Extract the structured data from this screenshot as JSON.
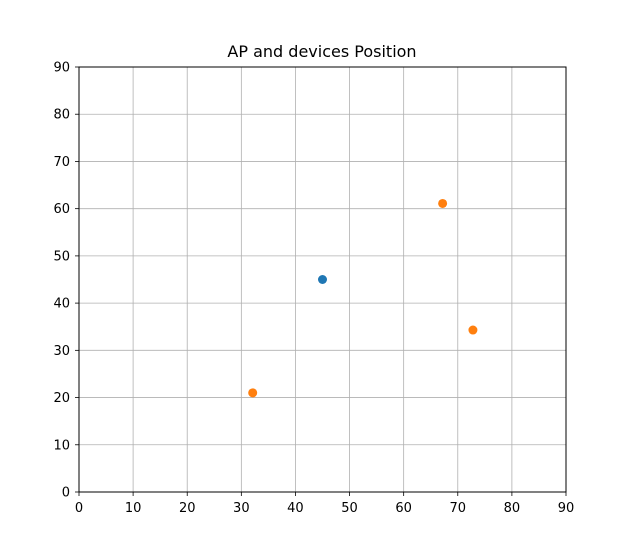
{
  "chart_data": {
    "type": "scatter",
    "title": "AP and devices Position",
    "xlabel": "",
    "ylabel": "",
    "xlim": [
      0,
      90
    ],
    "ylim": [
      0,
      90
    ],
    "xticks": [
      0,
      10,
      20,
      30,
      40,
      50,
      60,
      70,
      80,
      90
    ],
    "yticks": [
      0,
      10,
      20,
      30,
      40,
      50,
      60,
      70,
      80,
      90
    ],
    "grid": true,
    "series": [
      {
        "color": "#1f77b4",
        "points": [
          {
            "x": 45,
            "y": 45
          }
        ]
      },
      {
        "color": "#ff7f0e",
        "points": [
          {
            "x": 67.2,
            "y": 61.1
          },
          {
            "x": 72.8,
            "y": 34.3
          },
          {
            "x": 32.1,
            "y": 21.0
          }
        ]
      }
    ]
  }
}
